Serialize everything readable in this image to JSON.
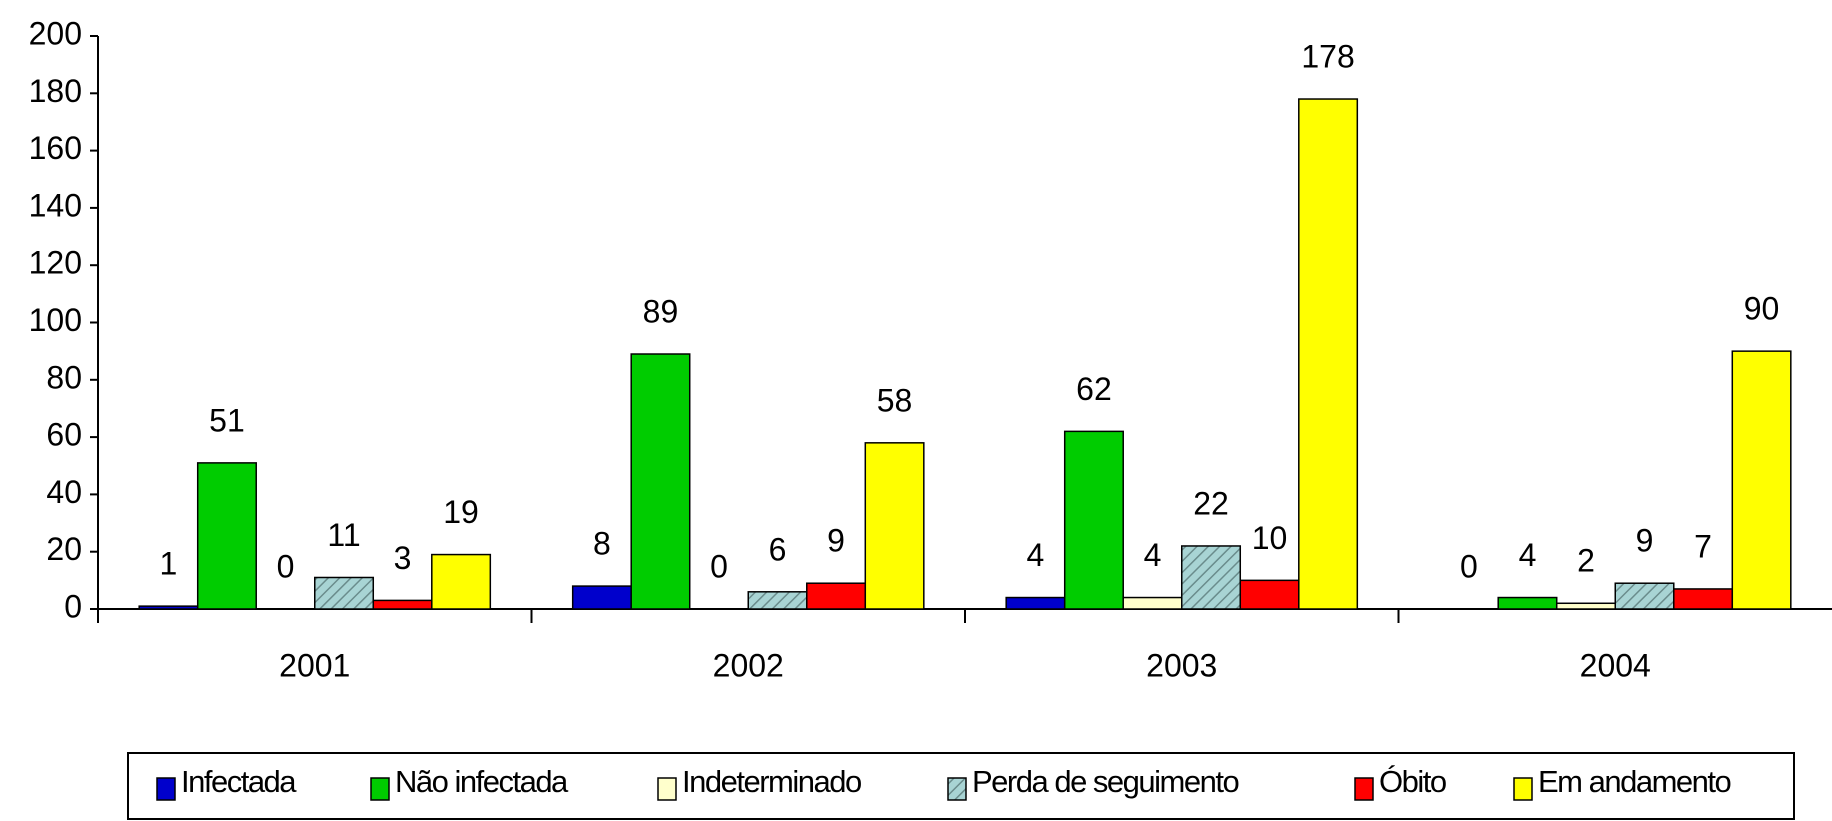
{
  "chart_data": {
    "type": "bar",
    "categories": [
      "2001",
      "2002",
      "2003",
      "2004"
    ],
    "series": [
      {
        "name": "Infectada",
        "color": "#0000cc",
        "values": [
          1,
          8,
          4,
          0
        ]
      },
      {
        "name": "Não infectada",
        "color": "#00cc00",
        "values": [
          51,
          89,
          62,
          4
        ]
      },
      {
        "name": "Indeterminado",
        "color": "#ffffcc",
        "values": [
          0,
          0,
          4,
          2
        ]
      },
      {
        "name": "Perda de seguimento",
        "color": "#a8d4d4",
        "values": [
          11,
          6,
          22,
          9
        ]
      },
      {
        "name": "Óbito",
        "color": "#ff0000",
        "values": [
          3,
          9,
          10,
          7
        ]
      },
      {
        "name": "Em andamento",
        "color": "#ffff00",
        "values": [
          19,
          58,
          178,
          90
        ]
      }
    ],
    "ylim": [
      0,
      200
    ],
    "yticks": [
      0,
      20,
      40,
      60,
      80,
      100,
      120,
      140,
      160,
      180,
      200
    ],
    "grid": false,
    "legend": "bottom"
  }
}
